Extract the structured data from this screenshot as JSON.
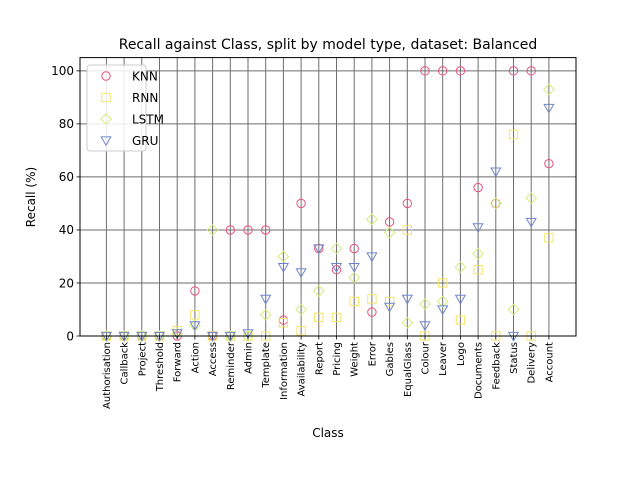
{
  "chart_data": {
    "type": "scatter",
    "title": "Recall against Class, split by model type, dataset: Balanced",
    "xlabel": "Class",
    "ylabel": "Recall (%)",
    "ylim": [
      0,
      105
    ],
    "yticks": [
      0,
      20,
      40,
      60,
      80,
      100
    ],
    "grid": true,
    "legend_position": "top-left",
    "categories": [
      "Authorisation",
      "Callback",
      "Project",
      "Threshold",
      "Forward",
      "Action",
      "Access",
      "Reminder",
      "Admin",
      "Template",
      "Information",
      "Availability",
      "Report",
      "Pricing",
      "Weight",
      "Error",
      "Gables",
      "EqualGlass",
      "Colour",
      "Leaver",
      "Logo",
      "Documents",
      "Feedback",
      "Status",
      "Delivery",
      "Account"
    ],
    "series": [
      {
        "name": "KNN",
        "marker": "circle",
        "color": "#e8507a",
        "values": [
          0,
          0,
          0,
          0,
          0,
          17,
          0,
          40,
          40,
          40,
          6,
          50,
          33,
          25,
          33,
          9,
          43,
          50,
          100,
          100,
          100,
          56,
          50,
          100,
          100,
          65
        ]
      },
      {
        "name": "RNN",
        "marker": "square",
        "color": "#f5e36a",
        "values": [
          0,
          0,
          0,
          0,
          2,
          8,
          0,
          0,
          0,
          0,
          5,
          2,
          7,
          7,
          13,
          14,
          13,
          40,
          0,
          20,
          6,
          25,
          0,
          76,
          0,
          37
        ]
      },
      {
        "name": "LSTM",
        "marker": "diamond",
        "color": "#d2ee7c",
        "values": [
          0,
          0,
          0,
          0,
          1,
          4,
          40,
          0,
          0,
          8,
          30,
          10,
          17,
          33,
          22,
          44,
          39,
          5,
          12,
          13,
          26,
          31,
          50,
          10,
          52,
          93
        ]
      },
      {
        "name": "GRU",
        "marker": "triangle-down",
        "color": "#6f86cc",
        "values": [
          0,
          0,
          0,
          0,
          1,
          4,
          0,
          0,
          1,
          14,
          26,
          24,
          33,
          26,
          26,
          30,
          11,
          14,
          4,
          10,
          14,
          41,
          62,
          0,
          43,
          86
        ]
      }
    ]
  }
}
